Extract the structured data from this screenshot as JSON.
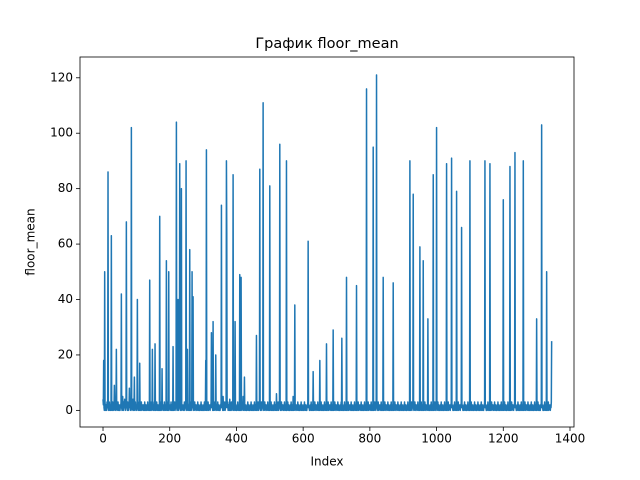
{
  "chart_data": {
    "type": "line",
    "title": "График floor_mean",
    "x_label": "Index",
    "y_label": "floor_mean",
    "color": "#1f77b4",
    "grid": false,
    "xlim": [
      -69,
      1412
    ],
    "xticks": [
      0,
      200,
      400,
      600,
      800,
      1000,
      1200,
      1400
    ],
    "ylim": [
      -6,
      127.5
    ],
    "yticks": [
      0,
      20,
      40,
      60,
      80,
      100,
      120
    ],
    "values": [
      4,
      2,
      18,
      1,
      0,
      50,
      3,
      1,
      0,
      2,
      1,
      0,
      3,
      1,
      2,
      86,
      1,
      0,
      2,
      3,
      1,
      0,
      2,
      1,
      0,
      63,
      2,
      1,
      0,
      3,
      1,
      2,
      0,
      1,
      9,
      3,
      1,
      0,
      2,
      1,
      22,
      1,
      0,
      2,
      1,
      3,
      0,
      1,
      2,
      0,
      1,
      0,
      2,
      1,
      3,
      42,
      1,
      0,
      2,
      5,
      1,
      0,
      3,
      1,
      2,
      4,
      1,
      0,
      2,
      1,
      68,
      2,
      1,
      0,
      3,
      1,
      0,
      2,
      1,
      8,
      1,
      2,
      0,
      3,
      1,
      102,
      1,
      0,
      2,
      1,
      4,
      1,
      0,
      2,
      12,
      1,
      0,
      3,
      1,
      2,
      1,
      0,
      2,
      40,
      1,
      3,
      0,
      1,
      2,
      0,
      17,
      1,
      0,
      2,
      1,
      3,
      0,
      1,
      2,
      1,
      1,
      0,
      2,
      1,
      0,
      3,
      1,
      0,
      2,
      1,
      1,
      0,
      2,
      1,
      3,
      0,
      1,
      2,
      1,
      0,
      47,
      1,
      0,
      2,
      1,
      3,
      0,
      1,
      22,
      1,
      1,
      0,
      2,
      1,
      3,
      0,
      24,
      1,
      0,
      2,
      1,
      3,
      0,
      1,
      2,
      1,
      0,
      2,
      1,
      0,
      70,
      1,
      0,
      3,
      1,
      2,
      0,
      15,
      1,
      2,
      1,
      0,
      2,
      1,
      3,
      0,
      1,
      2,
      1,
      0,
      54,
      1,
      2,
      0,
      3,
      1,
      0,
      50,
      1,
      2,
      1,
      0,
      2,
      1,
      3,
      0,
      1,
      2,
      1,
      0,
      23,
      1,
      0,
      2,
      1,
      3,
      0,
      1,
      2,
      1,
      104,
      1,
      0,
      2,
      1,
      40,
      0,
      1,
      2,
      1,
      89,
      1,
      0,
      2,
      1,
      80,
      0,
      1,
      2,
      1,
      1,
      0,
      2,
      1,
      3,
      0,
      1,
      2,
      1,
      90,
      1,
      0,
      2,
      22,
      3,
      0,
      1,
      2,
      1,
      0,
      58,
      1,
      0,
      2,
      1,
      3,
      0,
      50,
      2,
      1,
      41,
      1,
      0,
      2,
      1,
      3,
      0,
      1,
      2,
      1,
      1,
      0,
      2,
      1,
      3,
      0,
      1,
      2,
      1,
      0,
      1,
      0,
      2,
      1,
      3,
      0,
      1,
      2,
      1,
      0,
      1,
      0,
      2,
      1,
      3,
      0,
      1,
      2,
      18,
      0,
      94,
      1,
      0,
      2,
      1,
      3,
      0,
      1,
      2,
      1,
      1,
      0,
      2,
      1,
      3,
      28,
      1,
      2,
      1,
      0,
      32,
      1,
      0,
      2,
      1,
      3,
      0,
      1,
      20,
      1,
      1,
      0,
      2,
      1,
      3,
      0,
      1,
      2,
      1,
      0,
      1,
      0,
      2,
      1,
      3,
      74,
      1,
      2,
      1,
      0,
      5,
      1,
      0,
      2,
      1,
      3,
      0,
      1,
      2,
      1,
      90,
      64,
      2,
      1,
      3,
      0,
      1,
      2,
      1,
      0,
      4,
      1,
      0,
      2,
      1,
      3,
      0,
      1,
      2,
      1,
      85,
      0,
      2,
      1,
      3,
      0,
      32,
      2,
      1,
      0,
      1,
      0,
      2,
      1,
      3,
      0,
      1,
      2,
      1,
      0,
      49,
      1,
      0,
      2,
      48,
      3,
      0,
      1,
      2,
      1,
      5,
      0,
      2,
      1,
      12,
      0,
      1,
      2,
      1,
      0,
      1,
      0,
      2,
      1,
      3,
      0,
      1,
      2,
      1,
      0,
      1,
      0,
      2,
      1,
      3,
      0,
      1,
      2,
      1,
      0,
      1,
      0,
      2,
      1,
      3,
      0,
      1,
      2,
      1,
      0,
      27,
      1,
      0,
      2,
      1,
      3,
      0,
      1,
      2,
      1,
      87,
      1,
      0,
      2,
      1,
      3,
      0,
      1,
      2,
      1,
      111,
      1,
      0,
      2,
      1,
      3,
      0,
      1,
      2,
      1,
      1,
      0,
      2,
      1,
      3,
      0,
      1,
      2,
      1,
      0,
      81,
      0,
      2,
      1,
      3,
      0,
      1,
      2,
      1,
      0,
      1,
      0,
      2,
      1,
      3,
      0,
      1,
      2,
      1,
      0,
      6,
      1,
      0,
      2,
      1,
      3,
      0,
      1,
      2,
      1,
      96,
      1,
      0,
      2,
      1,
      3,
      0,
      1,
      2,
      1,
      1,
      0,
      2,
      1,
      3,
      0,
      1,
      2,
      1,
      0,
      90,
      0,
      2,
      1,
      3,
      0,
      1,
      2,
      1,
      0,
      1,
      0,
      2,
      1,
      3,
      0,
      1,
      2,
      1,
      0,
      5,
      1,
      0,
      2,
      1,
      38,
      0,
      1,
      2,
      1,
      1,
      0,
      2,
      1,
      3,
      0,
      1,
      2,
      1,
      0,
      1,
      0,
      2,
      1,
      3,
      0,
      1,
      2,
      1,
      0,
      1,
      0,
      2,
      1,
      3,
      0,
      1,
      2,
      1,
      0,
      1,
      0,
      2,
      1,
      3,
      61,
      1,
      2,
      1,
      0,
      1,
      0,
      2,
      1,
      3,
      0,
      1,
      2,
      1,
      0,
      14,
      1,
      0,
      2,
      1,
      3,
      0,
      1,
      2,
      1,
      1,
      0,
      2,
      1,
      3,
      0,
      1,
      2,
      1,
      0,
      18,
      0,
      2,
      1,
      3,
      0,
      1,
      2,
      1,
      0,
      1,
      0,
      2,
      1,
      3,
      0,
      1,
      2,
      1,
      0,
      24,
      1,
      0,
      2,
      1,
      3,
      0,
      1,
      2,
      1,
      1,
      0,
      2,
      1,
      3,
      0,
      1,
      2,
      1,
      0,
      29,
      1,
      0,
      2,
      1,
      3,
      0,
      1,
      2,
      1,
      1,
      0,
      2,
      1,
      3,
      0,
      1,
      2,
      1,
      0,
      1,
      0,
      2,
      1,
      3,
      0,
      26,
      2,
      1,
      0,
      1,
      0,
      2,
      1,
      3,
      0,
      1,
      2,
      1,
      0,
      48,
      1,
      0,
      2,
      1,
      3,
      0,
      1,
      2,
      1,
      1,
      0,
      2,
      1,
      3,
      0,
      1,
      2,
      1,
      0,
      1,
      0,
      2,
      1,
      3,
      0,
      1,
      2,
      1,
      0,
      45,
      1,
      0,
      2,
      1,
      3,
      0,
      1,
      2,
      1,
      1,
      0,
      2,
      1,
      3,
      0,
      1,
      2,
      1,
      0,
      1,
      0,
      2,
      1,
      3,
      0,
      1,
      2,
      1,
      0,
      116,
      1,
      0,
      2,
      1,
      3,
      0,
      1,
      2,
      1,
      1,
      0,
      2,
      1,
      3,
      0,
      1,
      2,
      1,
      0,
      95,
      1,
      0,
      2,
      1,
      3,
      0,
      1,
      2,
      1,
      121,
      1,
      0,
      2,
      1,
      3,
      0,
      1,
      2,
      1,
      1,
      0,
      2,
      1,
      3,
      0,
      1,
      2,
      1,
      0,
      48,
      1,
      0,
      2,
      1,
      3,
      0,
      1,
      2,
      1,
      1,
      0,
      2,
      1,
      3,
      0,
      1,
      2,
      1,
      0,
      1,
      0,
      2,
      1,
      3,
      0,
      1,
      2,
      1,
      0,
      46,
      1,
      0,
      2,
      1,
      3,
      0,
      1,
      2,
      1,
      1,
      0,
      2,
      1,
      3,
      0,
      1,
      2,
      1,
      0,
      1,
      0,
      2,
      1,
      3,
      0,
      1,
      2,
      1,
      0,
      1,
      0,
      2,
      1,
      3,
      0,
      1,
      2,
      1,
      0,
      1,
      0,
      2,
      1,
      3,
      0,
      1,
      2,
      1,
      0,
      90,
      1,
      0,
      2,
      1,
      3,
      0,
      1,
      2,
      1,
      78,
      1,
      0,
      2,
      1,
      3,
      0,
      1,
      2,
      1,
      1,
      0,
      2,
      1,
      3,
      0,
      1,
      2,
      1,
      0,
      59,
      0,
      2,
      1,
      3,
      0,
      1,
      2,
      1,
      0,
      54,
      1,
      0,
      2,
      1,
      3,
      0,
      1,
      2,
      1,
      1,
      0,
      2,
      1,
      33,
      0,
      1,
      2,
      1,
      0,
      1,
      0,
      2,
      1,
      3,
      0,
      1,
      2,
      1,
      0,
      85,
      1,
      0,
      2,
      1,
      3,
      0,
      1,
      2,
      1,
      102,
      0,
      2,
      1,
      3,
      0,
      1,
      2,
      1,
      0,
      1,
      0,
      2,
      1,
      3,
      0,
      1,
      2,
      1,
      0,
      1,
      0,
      2,
      1,
      3,
      0,
      1,
      2,
      1,
      0,
      89,
      1,
      0,
      2,
      1,
      3,
      0,
      1,
      2,
      1,
      1,
      0,
      2,
      1,
      3,
      91,
      1,
      2,
      1,
      0,
      1,
      0,
      2,
      1,
      3,
      0,
      1,
      2,
      1,
      0,
      79,
      1,
      0,
      2,
      1,
      3,
      0,
      1,
      2,
      1,
      1,
      0,
      2,
      1,
      3,
      66,
      1,
      2,
      1,
      0,
      1,
      0,
      2,
      1,
      3,
      0,
      1,
      2,
      1,
      0,
      1,
      0,
      2,
      1,
      3,
      0,
      1,
      2,
      1,
      0,
      90,
      0,
      2,
      1,
      3,
      0,
      1,
      2,
      1,
      0,
      1,
      0,
      2,
      1,
      3,
      0,
      1,
      2,
      1,
      0,
      1,
      0,
      2,
      1,
      3,
      0,
      1,
      2,
      1,
      0,
      1,
      0,
      2,
      1,
      3,
      0,
      1,
      2,
      1,
      0,
      1,
      0,
      2,
      1,
      3,
      90,
      1,
      2,
      1,
      0,
      1,
      0,
      2,
      1,
      3,
      0,
      1,
      2,
      1,
      0,
      89,
      1,
      0,
      2,
      1,
      3,
      0,
      1,
      2,
      1,
      1,
      0,
      2,
      1,
      3,
      0,
      1,
      2,
      1,
      0,
      1,
      0,
      2,
      1,
      3,
      0,
      1,
      2,
      1,
      0,
      1,
      0,
      2,
      1,
      3,
      0,
      1,
      2,
      1,
      0,
      76,
      0,
      2,
      1,
      3,
      0,
      1,
      2,
      1,
      0,
      1,
      0,
      2,
      1,
      3,
      0,
      1,
      2,
      1,
      0,
      88,
      1,
      0,
      2,
      1,
      3,
      0,
      1,
      2,
      1,
      1,
      0,
      2,
      1,
      3,
      93,
      1,
      2,
      1,
      0,
      1,
      0,
      2,
      1,
      3,
      0,
      1,
      2,
      1,
      0,
      1,
      0,
      2,
      1,
      3,
      0,
      1,
      2,
      1,
      0,
      90,
      1,
      0,
      2,
      1,
      3,
      0,
      1,
      2,
      1,
      1,
      0,
      2,
      1,
      3,
      0,
      1,
      2,
      1,
      0,
      1,
      0,
      2,
      1,
      3,
      0,
      1,
      2,
      1,
      0,
      1,
      0,
      2,
      1,
      3,
      0,
      1,
      2,
      1,
      0,
      33,
      0,
      2,
      1,
      3,
      0,
      1,
      2,
      1,
      0,
      1,
      0,
      2,
      1,
      3,
      103,
      1,
      2,
      1,
      0,
      1,
      0,
      2,
      1,
      3,
      0,
      1,
      2,
      1,
      0,
      50,
      1,
      0,
      2,
      1,
      3,
      0,
      1,
      2,
      1,
      1,
      0,
      2,
      1,
      3,
      25
    ]
  }
}
